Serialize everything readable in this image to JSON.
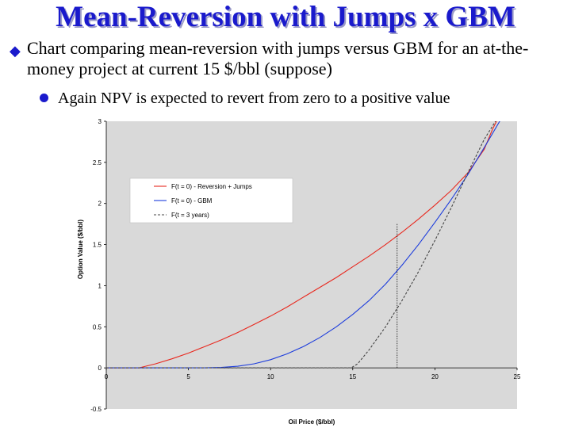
{
  "header": {
    "title": "Mean-Reversion with Jumps  x GBM"
  },
  "bullets": [
    {
      "text": "Chart comparing mean-reversion with jumps versus GBM for an at-the-money project at current 15 $/bbl (suppose)"
    },
    {
      "text": "Again NPV is expected to revert from zero to a positive value"
    }
  ],
  "chart_data": {
    "type": "line",
    "xlabel": "Oil Price ($/bbl)",
    "ylabel": "Option Value ($/bbl)",
    "xlim": [
      0,
      25
    ],
    "ylim": [
      -0.5,
      3
    ],
    "xticks": [
      "0",
      "5",
      "10",
      "15",
      "20",
      "25"
    ],
    "yticks": [
      "-0.5",
      "0",
      "0.5",
      "1",
      "1.5",
      "2",
      "2.5",
      "3"
    ],
    "grid": false,
    "legend_position": "top-left",
    "plot_background": "#d9d9d9",
    "series": [
      {
        "name": "F(t = 0) - Reversion + Jumps",
        "color": "#e8281e",
        "style": "solid",
        "x": [
          0,
          2,
          3,
          4,
          5,
          6,
          7,
          8,
          9,
          10,
          11,
          12,
          13,
          14,
          15,
          16,
          17,
          18,
          19,
          20,
          21,
          22,
          23,
          23.5,
          24
        ],
        "y": [
          0,
          0,
          0.05,
          0.11,
          0.18,
          0.26,
          0.34,
          0.43,
          0.53,
          0.63,
          0.74,
          0.86,
          0.98,
          1.1,
          1.23,
          1.36,
          1.5,
          1.65,
          1.81,
          1.98,
          2.16,
          2.37,
          2.66,
          2.9,
          3.1
        ]
      },
      {
        "name": "F(t = 0) - GBM",
        "color": "#1c3cdc",
        "style": "solid",
        "x": [
          0,
          6,
          7,
          8,
          9,
          10,
          11,
          12,
          13,
          14,
          15,
          16,
          17,
          18,
          19,
          20,
          21,
          22,
          23,
          24
        ],
        "y": [
          0,
          0,
          0.005,
          0.02,
          0.05,
          0.1,
          0.17,
          0.26,
          0.37,
          0.5,
          0.65,
          0.82,
          1.02,
          1.25,
          1.5,
          1.77,
          2.05,
          2.35,
          2.68,
          3.02
        ]
      },
      {
        "name": "F(t = 3 years)",
        "color": "#444444",
        "style": "dashed",
        "x": [
          0,
          14.9,
          15.3,
          16,
          17,
          18,
          19,
          20,
          21,
          22,
          23,
          24
        ],
        "y": [
          0,
          0,
          0.05,
          0.22,
          0.5,
          0.82,
          1.17,
          1.55,
          1.95,
          2.37,
          2.78,
          3.1
        ]
      }
    ],
    "annotations": [
      {
        "type": "vertical-dotted-line",
        "x": 17.7,
        "y_from": 0,
        "y_to": 1.75
      }
    ]
  }
}
